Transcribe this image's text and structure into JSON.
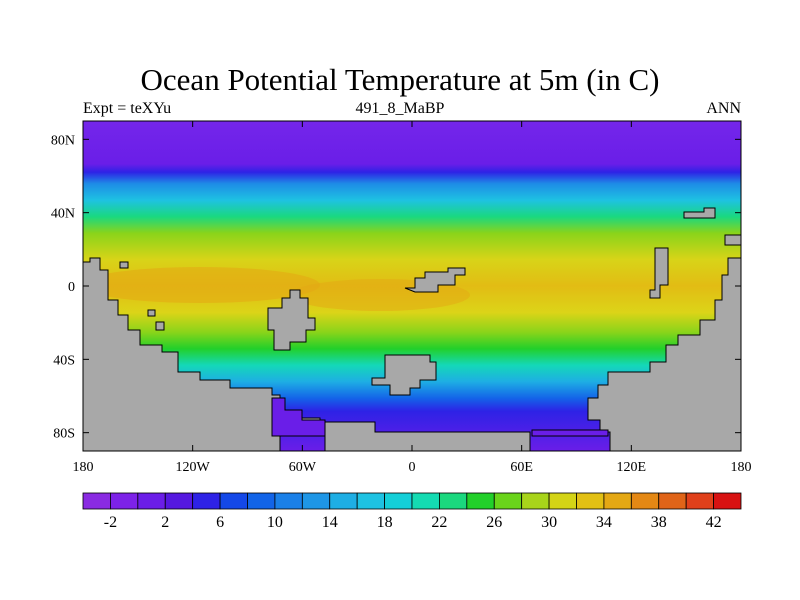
{
  "header": {
    "title": "Ocean Potential Temperature at 5m (in C)",
    "left": "Expt = teXYu",
    "center": "491_8_MaBP",
    "right": "ANN"
  },
  "map": {
    "projection": "cylindrical-equidistant",
    "lon_range": [
      -180,
      180
    ],
    "lat_range": [
      -90,
      90
    ],
    "x_ticks": [
      {
        "value": -180,
        "label": "180"
      },
      {
        "value": -120,
        "label": "120W"
      },
      {
        "value": -60,
        "label": "60W"
      },
      {
        "value": 0,
        "label": "0"
      },
      {
        "value": 60,
        "label": "60E"
      },
      {
        "value": 120,
        "label": "120E"
      },
      {
        "value": 180,
        "label": "180"
      }
    ],
    "y_ticks": [
      {
        "value": 80,
        "label": "80N"
      },
      {
        "value": 40,
        "label": "40N"
      },
      {
        "value": 0,
        "label": "0"
      },
      {
        "value": -40,
        "label": "40S"
      },
      {
        "value": -80,
        "label": "80S"
      }
    ],
    "land_color": "#a8a8a8",
    "field": "sea surface potential temperature",
    "units": "C"
  },
  "colorbar": {
    "levels": [
      -2,
      0,
      2,
      4,
      6,
      8,
      10,
      12,
      14,
      16,
      18,
      20,
      22,
      24,
      26,
      28,
      30,
      32,
      34,
      36,
      38,
      40,
      42
    ],
    "labels": [
      "-2",
      "2",
      "6",
      "10",
      "14",
      "18",
      "22",
      "26",
      "30",
      "34",
      "38",
      "42"
    ],
    "colors": [
      "#8a2be2",
      "#7d22e8",
      "#6b1ee8",
      "#5518e0",
      "#2e22e6",
      "#1448e8",
      "#1264e8",
      "#1a80e8",
      "#1e96e6",
      "#1eaee4",
      "#1ec2e2",
      "#14cfd8",
      "#14dbb2",
      "#1ad87e",
      "#22d02a",
      "#6ad41a",
      "#a8d41a",
      "#d4d416",
      "#e2c014",
      "#e4a814",
      "#e48814",
      "#e06418",
      "#e0401a",
      "#d81212"
    ]
  }
}
